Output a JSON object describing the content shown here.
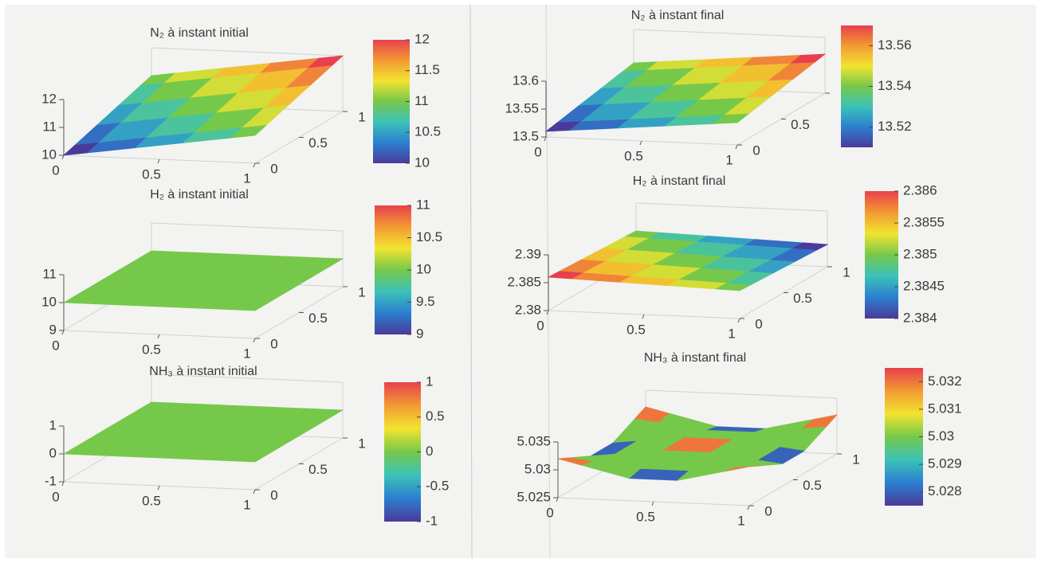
{
  "chart_data": [
    {
      "type": "surface",
      "title": "N₂ à instant initial",
      "x": [
        0,
        0.25,
        0.5,
        0.75,
        1
      ],
      "y": [
        0,
        0.25,
        0.5,
        0.75,
        1
      ],
      "z": [
        [
          10,
          10.25,
          10.5,
          10.75,
          11
        ],
        [
          10.25,
          10.5,
          10.75,
          11,
          11.25
        ],
        [
          10.5,
          10.75,
          11,
          11.25,
          11.5
        ],
        [
          10.75,
          11,
          11.25,
          11.5,
          11.75
        ],
        [
          11,
          11.25,
          11.5,
          11.75,
          12
        ]
      ],
      "xlim": [
        0,
        1
      ],
      "ylim": [
        0,
        1
      ],
      "zlim": [
        10,
        12
      ],
      "xticks": [
        0,
        0.5,
        1
      ],
      "yticks": [
        0,
        0.5,
        1
      ],
      "zticks": [
        10,
        11,
        12
      ],
      "clim": [
        10,
        12
      ],
      "cticks": [
        10,
        10.5,
        11,
        11.5,
        12
      ],
      "colormap": [
        "#4a3a9a",
        "#2c7fd0",
        "#3cc2b8",
        "#76c84a",
        "#f2e430",
        "#f29a32",
        "#e8404e"
      ]
    },
    {
      "type": "surface",
      "title": "H₂ à instant initial",
      "x": [
        0,
        0.25,
        0.5,
        0.75,
        1
      ],
      "y": [
        0,
        0.25,
        0.5,
        0.75,
        1
      ],
      "z": [
        [
          10,
          10,
          10,
          10,
          10
        ],
        [
          10,
          10,
          10,
          10,
          10
        ],
        [
          10,
          10,
          10,
          10,
          10
        ],
        [
          10,
          10,
          10,
          10,
          10
        ],
        [
          10,
          10,
          10,
          10,
          10
        ]
      ],
      "xlim": [
        0,
        1
      ],
      "ylim": [
        0,
        1
      ],
      "zlim": [
        9,
        11
      ],
      "xticks": [
        0,
        0.5,
        1
      ],
      "yticks": [
        0,
        0.5,
        1
      ],
      "zticks": [
        9,
        10,
        11
      ],
      "clim": [
        9,
        11
      ],
      "cticks": [
        9,
        9.5,
        10,
        10.5,
        11
      ],
      "colormap": [
        "#4a3a9a",
        "#2c7fd0",
        "#3cc2b8",
        "#76c84a",
        "#f2e430",
        "#f29a32",
        "#e8404e"
      ]
    },
    {
      "type": "surface",
      "title": "NH₃ à instant initial",
      "x": [
        0,
        0.25,
        0.5,
        0.75,
        1
      ],
      "y": [
        0,
        0.25,
        0.5,
        0.75,
        1
      ],
      "z": [
        [
          0,
          0,
          0,
          0,
          0
        ],
        [
          0,
          0,
          0,
          0,
          0
        ],
        [
          0,
          0,
          0,
          0,
          0
        ],
        [
          0,
          0,
          0,
          0,
          0
        ],
        [
          0,
          0,
          0,
          0,
          0
        ]
      ],
      "xlim": [
        0,
        1
      ],
      "ylim": [
        0,
        1
      ],
      "zlim": [
        -1,
        1
      ],
      "xticks": [
        0,
        0.5,
        1
      ],
      "yticks": [
        0,
        0.5,
        1
      ],
      "zticks": [
        -1,
        0,
        1
      ],
      "clim": [
        -1,
        1
      ],
      "cticks": [
        -1,
        -0.5,
        0,
        0.5,
        1
      ],
      "colormap": [
        "#4a3a9a",
        "#2c7fd0",
        "#3cc2b8",
        "#76c84a",
        "#f2e430",
        "#f29a32",
        "#e8404e"
      ]
    },
    {
      "type": "surface",
      "title": "N₂ à instant final",
      "x": [
        0,
        0.25,
        0.5,
        0.75,
        1
      ],
      "y": [
        0,
        0.25,
        0.5,
        0.75,
        1
      ],
      "z": [
        [
          13.51,
          13.5175,
          13.525,
          13.5325,
          13.54
        ],
        [
          13.5175,
          13.525,
          13.5325,
          13.54,
          13.5475
        ],
        [
          13.525,
          13.5325,
          13.54,
          13.5475,
          13.555
        ],
        [
          13.5325,
          13.54,
          13.5475,
          13.555,
          13.5625
        ],
        [
          13.54,
          13.5475,
          13.555,
          13.5625,
          13.57
        ]
      ],
      "xlim": [
        0,
        1
      ],
      "ylim": [
        0,
        1
      ],
      "zlim": [
        13.5,
        13.6
      ],
      "xticks": [
        0,
        0.5,
        1
      ],
      "yticks": [
        0,
        0.5,
        1
      ],
      "zticks": [
        13.5,
        13.55,
        13.6
      ],
      "clim": [
        13.51,
        13.57
      ],
      "cticks": [
        13.52,
        13.54,
        13.56
      ],
      "colormap": [
        "#4a3a9a",
        "#2c7fd0",
        "#3cc2b8",
        "#76c84a",
        "#f2e430",
        "#f29a32",
        "#e8404e"
      ]
    },
    {
      "type": "surface",
      "title": "H₂ à instant final",
      "x": [
        0,
        0.25,
        0.5,
        0.75,
        1
      ],
      "y": [
        0,
        0.25,
        0.5,
        0.75,
        1
      ],
      "z": [
        [
          2.386,
          2.38575,
          2.3855,
          2.38525,
          2.385
        ],
        [
          2.38575,
          2.3855,
          2.38525,
          2.385,
          2.38475
        ],
        [
          2.3855,
          2.38525,
          2.385,
          2.38475,
          2.3845
        ],
        [
          2.38525,
          2.385,
          2.38475,
          2.3845,
          2.38425
        ],
        [
          2.385,
          2.38475,
          2.3845,
          2.38425,
          2.384
        ]
      ],
      "xlim": [
        0,
        1
      ],
      "ylim": [
        0,
        1
      ],
      "zlim": [
        2.38,
        2.39
      ],
      "xticks": [
        0,
        0.5,
        1
      ],
      "yticks": [
        0,
        0.5,
        1
      ],
      "zticks": [
        2.38,
        2.385,
        2.39
      ],
      "clim": [
        2.384,
        2.386
      ],
      "cticks": [
        2.384,
        2.3845,
        2.385,
        2.3855,
        2.386
      ],
      "colormap": [
        "#4a3a9a",
        "#2c7fd0",
        "#3cc2b8",
        "#76c84a",
        "#f2e430",
        "#f29a32",
        "#e8404e"
      ]
    },
    {
      "type": "surface",
      "title": "NH₃ à instant final",
      "x": [
        0,
        0.25,
        0.5,
        0.75,
        1
      ],
      "y": [
        0,
        0.25,
        0.5,
        0.75,
        1
      ],
      "z": [
        [
          5.032,
          5.03,
          5.028,
          5.03,
          5.032
        ],
        [
          5.03,
          5.03,
          5.03,
          5.03,
          5.03
        ],
        [
          5.028,
          5.03,
          5.032,
          5.03,
          5.028
        ],
        [
          5.03,
          5.03,
          5.03,
          5.03,
          5.03
        ],
        [
          5.032,
          5.03,
          5.028,
          5.03,
          5.032
        ]
      ],
      "xlim": [
        0,
        1
      ],
      "ylim": [
        0,
        1
      ],
      "zlim": [
        5.025,
        5.035
      ],
      "xticks": [
        0,
        0.5,
        1
      ],
      "yticks": [
        0,
        0.5,
        1
      ],
      "zticks": [
        5.025,
        5.03,
        5.035
      ],
      "clim": [
        5.0275,
        5.0325
      ],
      "cticks": [
        5.028,
        5.029,
        5.03,
        5.031,
        5.032
      ],
      "colormap": [
        "#4a3a9a",
        "#2c7fd0",
        "#3cc2b8",
        "#76c84a",
        "#f2e430",
        "#f29a32",
        "#e8404e"
      ]
    }
  ]
}
